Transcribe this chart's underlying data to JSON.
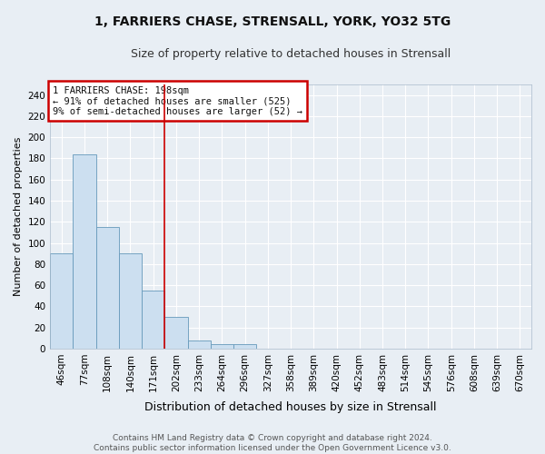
{
  "title": "1, FARRIERS CHASE, STRENSALL, YORK, YO32 5TG",
  "subtitle": "Size of property relative to detached houses in Strensall",
  "xlabel": "Distribution of detached houses by size in Strensall",
  "ylabel": "Number of detached properties",
  "bar_labels": [
    "46sqm",
    "77sqm",
    "108sqm",
    "140sqm",
    "171sqm",
    "202sqm",
    "233sqm",
    "264sqm",
    "296sqm",
    "327sqm",
    "358sqm",
    "389sqm",
    "420sqm",
    "452sqm",
    "483sqm",
    "514sqm",
    "545sqm",
    "576sqm",
    "608sqm",
    "639sqm",
    "670sqm"
  ],
  "bar_values": [
    90,
    184,
    115,
    90,
    55,
    30,
    8,
    4,
    4,
    0,
    0,
    0,
    0,
    0,
    0,
    0,
    0,
    0,
    0,
    0,
    0
  ],
  "bar_color": "#ccdff0",
  "bar_edge_color": "#6699bb",
  "ylim": [
    0,
    250
  ],
  "yticks": [
    0,
    20,
    40,
    60,
    80,
    100,
    120,
    140,
    160,
    180,
    200,
    220,
    240
  ],
  "vline_color": "#cc0000",
  "annotation_text": "1 FARRIERS CHASE: 198sqm\n← 91% of detached houses are smaller (525)\n9% of semi-detached houses are larger (52) →",
  "annotation_box_color": "#cc0000",
  "annotation_bg_color": "#ffffff",
  "footer_line1": "Contains HM Land Registry data © Crown copyright and database right 2024.",
  "footer_line2": "Contains public sector information licensed under the Open Government Licence v3.0.",
  "background_color": "#e8eef4",
  "grid_color": "#ffffff",
  "title_fontsize": 10,
  "subtitle_fontsize": 9,
  "tick_fontsize": 7.5,
  "ylabel_fontsize": 8,
  "xlabel_fontsize": 9,
  "footer_fontsize": 6.5
}
